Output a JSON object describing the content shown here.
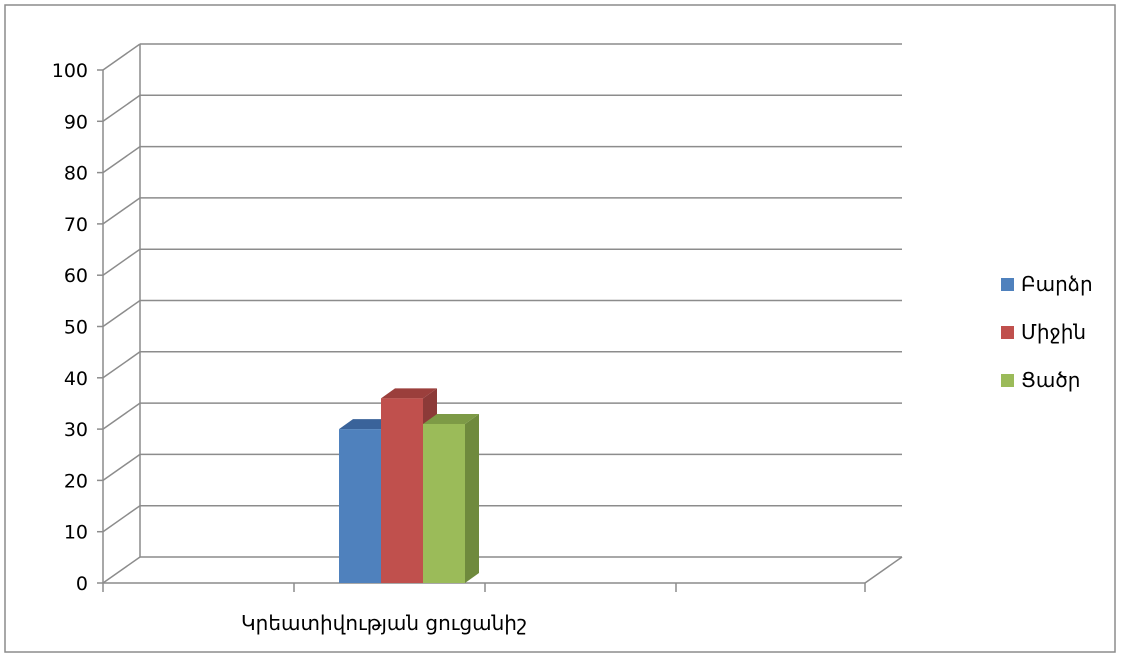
{
  "chart_data": {
    "type": "bar",
    "categories": [
      "Կրեատիվության  ցուցանիշ"
    ],
    "series": [
      {
        "name": "Բարձր",
        "values": [
          30
        ],
        "color": "#4f81bd",
        "side_color": "#385d8a",
        "top_color": "#3a639a"
      },
      {
        "name": "Միջին",
        "values": [
          36
        ],
        "color": "#c0504d",
        "side_color": "#8c3a38",
        "top_color": "#9b3f3c"
      },
      {
        "name": "Ցածր",
        "values": [
          31
        ],
        "color": "#9bbb59",
        "side_color": "#6f8a3d",
        "top_color": "#7d9a46"
      }
    ],
    "ylim": [
      0,
      100
    ],
    "yticks": [
      "0",
      "10",
      "20",
      "30",
      "40",
      "50",
      "60",
      "70",
      "80",
      "90",
      "100"
    ],
    "grid": true,
    "legend": "right",
    "style": "3d-column"
  }
}
